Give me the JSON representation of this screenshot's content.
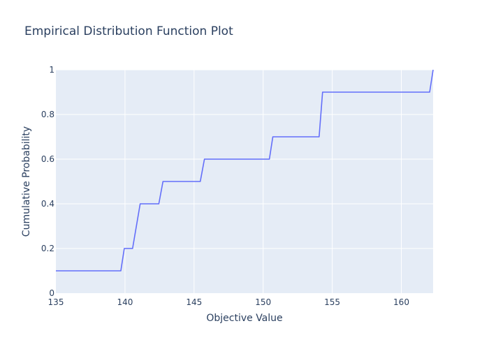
{
  "chart_data": {
    "type": "line",
    "line_shape": "step-ish ECDF (steep ramps between levels)",
    "title": "Empirical Distribution Function Plot",
    "xlabel": "Objective Value",
    "ylabel": "Cumulative Probability",
    "xlim": [
      135,
      162.3
    ],
    "ylim": [
      0,
      1
    ],
    "x_ticks": [
      135,
      140,
      145,
      150,
      155,
      160
    ],
    "x_tick_labels": [
      "135",
      "140",
      "145",
      "150",
      "155",
      "160"
    ],
    "y_ticks": [
      0,
      0.2,
      0.4,
      0.6,
      0.8,
      1
    ],
    "y_tick_labels": [
      "0",
      "0.2",
      "0.4",
      "0.6",
      "0.8",
      "1"
    ],
    "grid": true,
    "colors": {
      "line": "#636efa",
      "plot_background": "#e5ecf6",
      "grid": "#ffffff",
      "text": "#2a3f5f"
    },
    "series": [
      {
        "x": [
          135,
          139.7,
          139.95,
          140.55,
          141.1,
          142.45,
          142.75,
          145.45,
          145.75,
          150.45,
          150.7,
          154.05,
          154.3,
          162.05,
          162.3
        ],
        "y": [
          0.1,
          0.1,
          0.2,
          0.2,
          0.4,
          0.4,
          0.5,
          0.5,
          0.6,
          0.6,
          0.7,
          0.7,
          0.9,
          0.9,
          1.0
        ]
      }
    ]
  }
}
